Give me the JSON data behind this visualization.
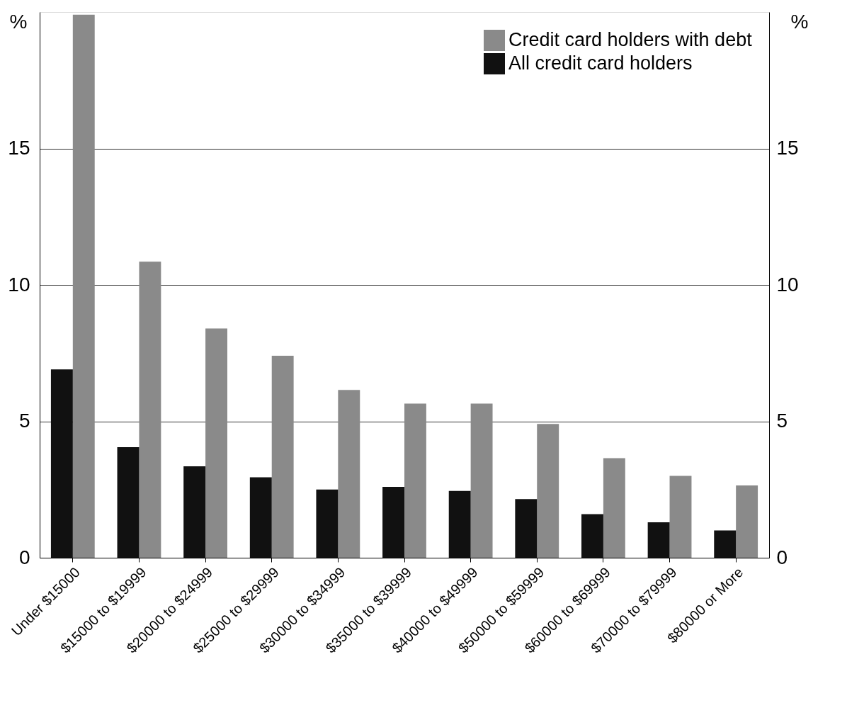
{
  "chart_data": {
    "type": "bar",
    "ylabel": "%",
    "y2label": "%",
    "categories": [
      "Under $15000",
      "$15000 to $19999",
      "$20000 to $24999",
      "$25000 to $29999",
      "$30000 to $34999",
      "$35000 to $39999",
      "$40000 to $49999",
      "$50000 to $59999",
      "$60000 to $69999",
      "$70000 to $79999",
      "$80000 or More"
    ],
    "series": [
      {
        "name": "Credit card holders with debt",
        "color": "#8a8a8a",
        "values": [
          19.9,
          10.85,
          8.4,
          7.4,
          6.15,
          5.65,
          5.65,
          4.9,
          3.65,
          3.0,
          2.65
        ]
      },
      {
        "name": "All credit card holders",
        "color": "#111111",
        "values": [
          6.9,
          4.05,
          3.35,
          2.95,
          2.5,
          2.6,
          2.45,
          2.15,
          1.6,
          1.3,
          1.0
        ]
      }
    ],
    "ylim": [
      0,
      20
    ],
    "yticks": [
      0,
      5,
      10,
      15
    ],
    "y2lim": [
      0,
      20
    ],
    "y2ticks": [
      0,
      5,
      10,
      15
    ],
    "grid": "y",
    "legend": "top right"
  }
}
